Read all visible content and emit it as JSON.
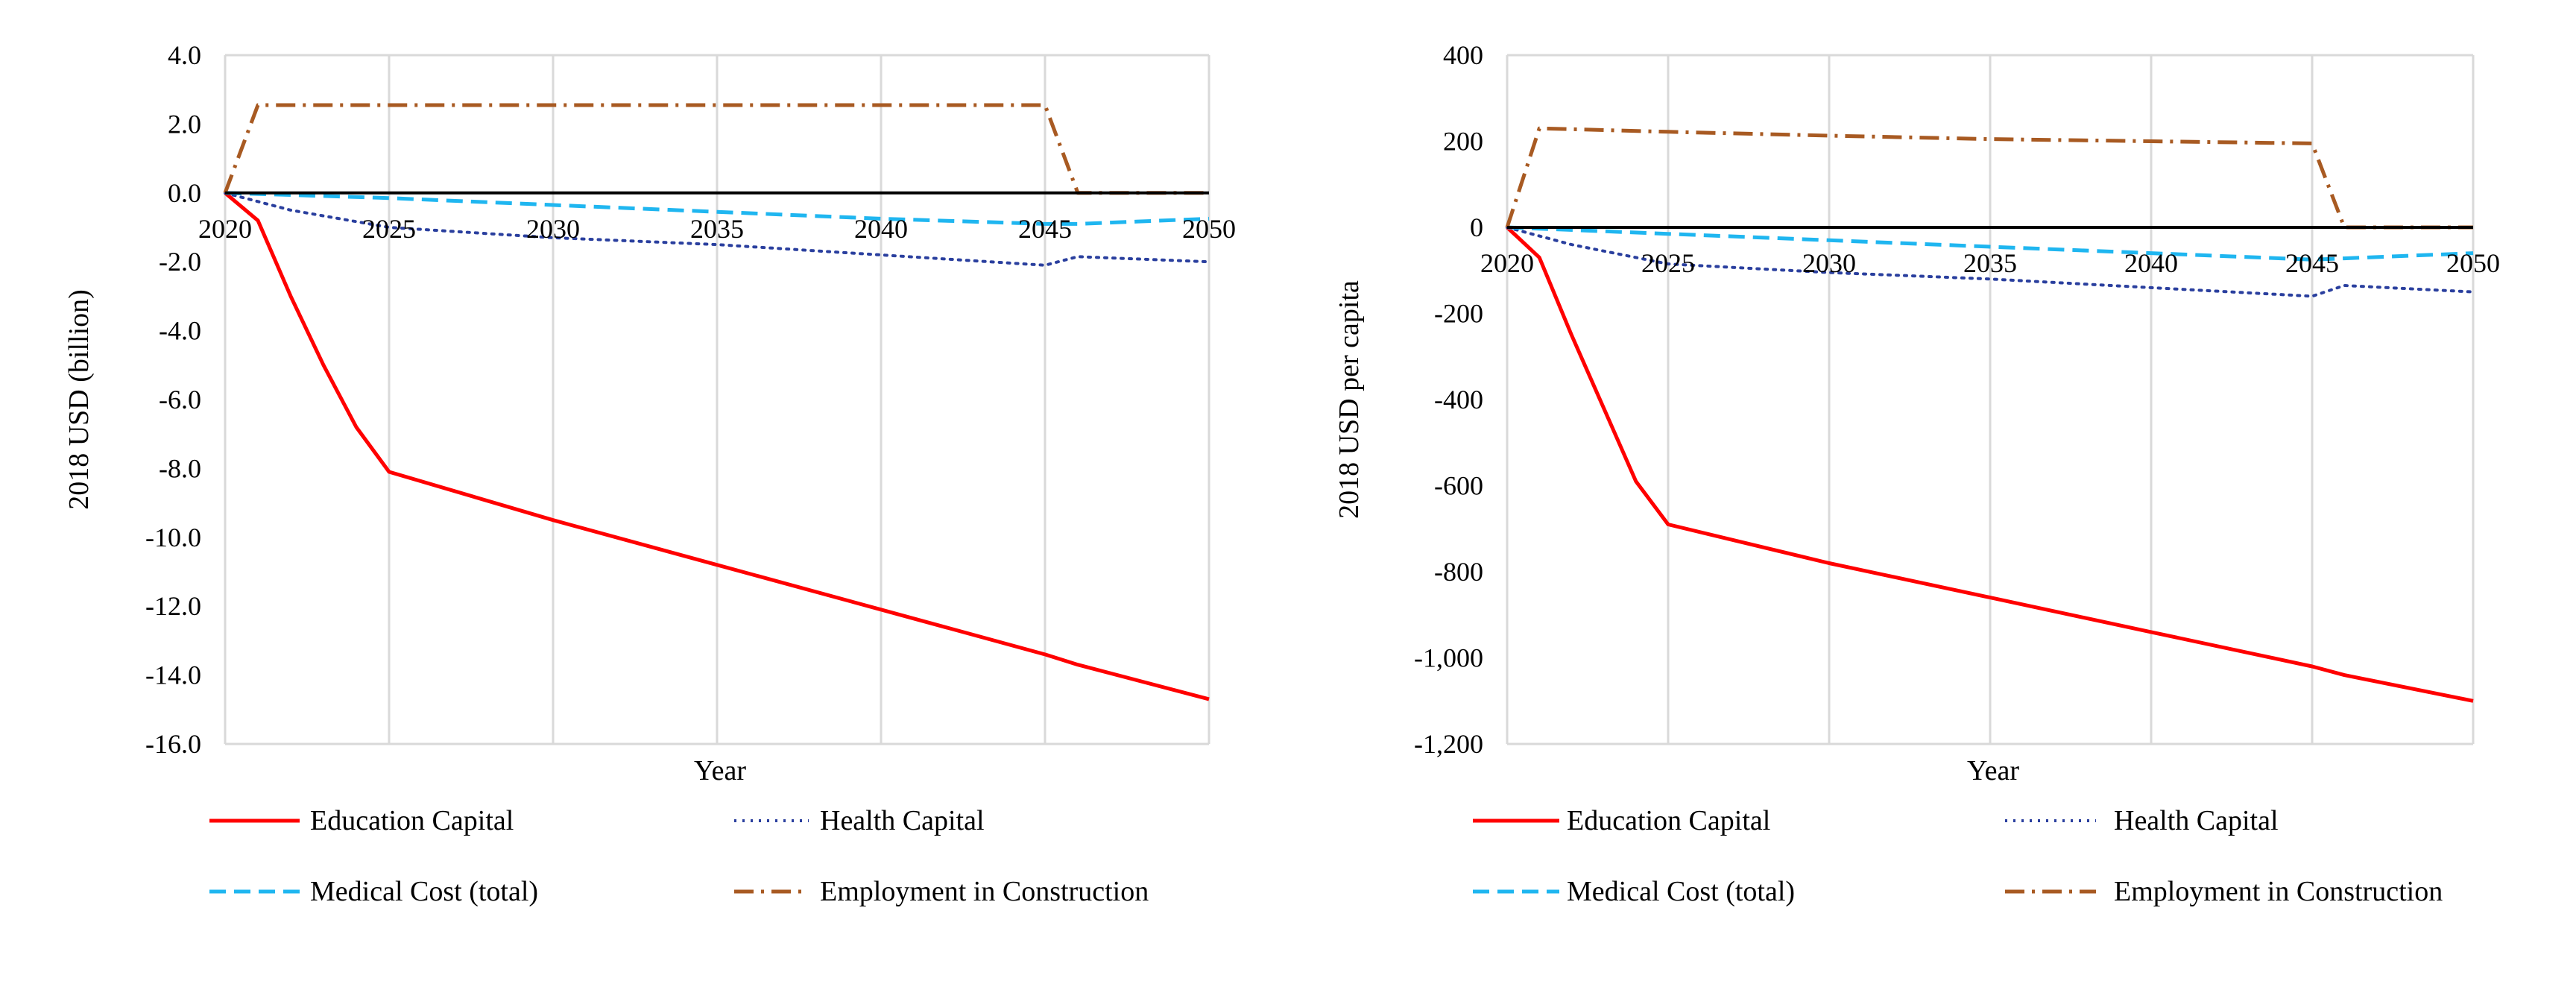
{
  "colors": {
    "education": "#ff0000",
    "health": "#2a3f9e",
    "medical": "#1fb6f0",
    "employment": "#a85a22",
    "grid": "#d9d9d9",
    "axis": "#000000",
    "text": "#000000"
  },
  "chart_data": [
    {
      "type": "line",
      "title": "",
      "xlabel": "Year",
      "ylabel": "2018 USD (billion)",
      "xlim": [
        2020,
        2050
      ],
      "ylim": [
        -16,
        4
      ],
      "x_ticks": [
        2020,
        2025,
        2030,
        2035,
        2040,
        2045,
        2050
      ],
      "x_tick_labels": [
        "2020",
        "2025",
        "2030",
        "2035",
        "2040",
        "2045",
        "2050"
      ],
      "y_ticks": [
        4,
        2,
        0,
        -2,
        -4,
        -6,
        -8,
        -10,
        -12,
        -14,
        -16
      ],
      "y_tick_labels": [
        "4.0",
        "2.0",
        "0.0",
        "-2.0",
        "-4.0",
        "-6.0",
        "-8.0",
        "-10.0",
        "-12.0",
        "-14.0",
        "-16.0"
      ],
      "grid": "vertical",
      "legend": "bottom",
      "series": [
        {
          "key": "education",
          "name": "Education Capital",
          "style": "solid",
          "x": [
            2020,
            2021,
            2022,
            2023,
            2024,
            2025,
            2030,
            2035,
            2040,
            2045,
            2046,
            2050
          ],
          "y": [
            0,
            -0.8,
            -3.0,
            -5.0,
            -6.8,
            -8.1,
            -9.5,
            -10.8,
            -12.1,
            -13.4,
            -13.7,
            -14.7
          ]
        },
        {
          "key": "health",
          "name": "Health Capital",
          "style": "dotted",
          "x": [
            2020,
            2022,
            2025,
            2030,
            2035,
            2040,
            2045,
            2046,
            2050
          ],
          "y": [
            0,
            -0.5,
            -1.0,
            -1.3,
            -1.5,
            -1.8,
            -2.1,
            -1.85,
            -2.0
          ]
        },
        {
          "key": "medical",
          "name": "Medical Cost (total)",
          "style": "dashed",
          "x": [
            2020,
            2025,
            2030,
            2035,
            2040,
            2045,
            2046,
            2050
          ],
          "y": [
            0,
            -0.15,
            -0.35,
            -0.55,
            -0.75,
            -0.9,
            -0.9,
            -0.75
          ]
        },
        {
          "key": "employment",
          "name": "Employment in Construction",
          "style": "dashdot",
          "x": [
            2020,
            2021,
            2025,
            2030,
            2035,
            2040,
            2045,
            2046,
            2050
          ],
          "y": [
            0,
            2.55,
            2.55,
            2.55,
            2.55,
            2.55,
            2.55,
            0,
            0
          ]
        }
      ]
    },
    {
      "type": "line",
      "title": "",
      "xlabel": "Year",
      "ylabel": "2018 USD per capita",
      "xlim": [
        2020,
        2050
      ],
      "ylim": [
        -1200,
        400
      ],
      "x_ticks": [
        2020,
        2025,
        2030,
        2035,
        2040,
        2045,
        2050
      ],
      "x_tick_labels": [
        "2020",
        "2025",
        "2030",
        "2035",
        "2040",
        "2045",
        "2050"
      ],
      "y_ticks": [
        400,
        200,
        0,
        -200,
        -400,
        -600,
        -800,
        -1000,
        -1200
      ],
      "y_tick_labels": [
        "400",
        "200",
        "0",
        "-200",
        "-400",
        "-600",
        "-800",
        "-1,000",
        "-1,200"
      ],
      "grid": "vertical",
      "legend": "bottom",
      "series": [
        {
          "key": "education",
          "name": "Education Capital",
          "style": "solid",
          "x": [
            2020,
            2021,
            2022,
            2023,
            2024,
            2025,
            2030,
            2035,
            2040,
            2045,
            2046,
            2050
          ],
          "y": [
            0,
            -70,
            -250,
            -420,
            -590,
            -690,
            -780,
            -860,
            -940,
            -1020,
            -1040,
            -1100
          ]
        },
        {
          "key": "health",
          "name": "Health Capital",
          "style": "dotted",
          "x": [
            2020,
            2022,
            2025,
            2030,
            2035,
            2040,
            2045,
            2046,
            2050
          ],
          "y": [
            0,
            -40,
            -85,
            -105,
            -120,
            -140,
            -160,
            -135,
            -150
          ]
        },
        {
          "key": "medical",
          "name": "Medical Cost (total)",
          "style": "dashed",
          "x": [
            2020,
            2025,
            2030,
            2035,
            2040,
            2045,
            2046,
            2050
          ],
          "y": [
            0,
            -15,
            -30,
            -45,
            -60,
            -75,
            -72,
            -60
          ]
        },
        {
          "key": "employment",
          "name": "Employment in Construction",
          "style": "dashdot",
          "x": [
            2020,
            2021,
            2025,
            2030,
            2035,
            2040,
            2045,
            2046,
            2050
          ],
          "y": [
            0,
            230,
            222,
            213,
            205,
            200,
            195,
            0,
            0
          ]
        }
      ]
    }
  ]
}
